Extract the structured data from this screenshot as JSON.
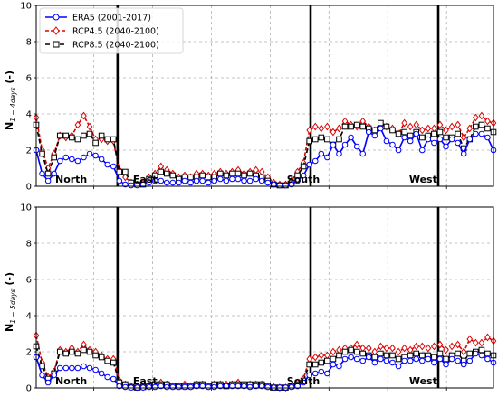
{
  "chart_data": [
    {
      "type": "line",
      "ylabel": "N",
      "ylabel_sub": "1 − 4days",
      "ylabel_unit": "(-)",
      "ylim": [
        0,
        10
      ],
      "yticks": [
        "0",
        "2",
        "4",
        "6",
        "8",
        "10"
      ],
      "grid": true,
      "legend_position": "top-left",
      "region_labels": [
        "North",
        "East",
        "South",
        "West"
      ],
      "series": [
        {
          "name": "ERA5 (2001-2017)",
          "color": "#0000ff",
          "marker": "circle",
          "values": [
            2.0,
            0.7,
            0.3,
            0.7,
            1.4,
            1.6,
            1.5,
            1.4,
            1.6,
            1.8,
            1.7,
            1.5,
            1.2,
            1.1,
            0.3,
            0.1,
            0.05,
            0.05,
            0.1,
            0.2,
            0.3,
            0.3,
            0.2,
            0.2,
            0.2,
            0.3,
            0.2,
            0.3,
            0.3,
            0.2,
            0.3,
            0.4,
            0.3,
            0.4,
            0.4,
            0.3,
            0.3,
            0.4,
            0.3,
            0.2,
            0.1,
            0.05,
            0.05,
            0.1,
            0.3,
            0.6,
            1.2,
            1.4,
            1.8,
            1.6,
            2.3,
            1.8,
            2.3,
            2.7,
            2.2,
            1.8,
            3.0,
            2.8,
            3.2,
            2.5,
            2.3,
            2.0,
            2.7,
            2.5,
            2.9,
            2.0,
            2.6,
            2.4,
            2.6,
            2.2,
            2.6,
            2.4,
            1.8,
            2.6,
            2.9,
            2.9,
            2.7,
            2.0
          ]
        },
        {
          "name": "RCP4.5 (2040-2100)",
          "color": "#dd0000",
          "marker": "diamond",
          "values": [
            3.8,
            2.0,
            1.0,
            1.8,
            2.8,
            2.7,
            2.8,
            3.4,
            3.9,
            3.3,
            2.6,
            2.6,
            2.5,
            2.5,
            0.9,
            0.5,
            0.2,
            0.1,
            0.2,
            0.5,
            0.7,
            1.1,
            0.9,
            0.7,
            0.5,
            0.6,
            0.5,
            0.7,
            0.7,
            0.6,
            0.7,
            0.8,
            0.7,
            0.8,
            0.9,
            0.7,
            0.8,
            0.9,
            0.8,
            0.5,
            0.2,
            0.1,
            0.1,
            0.3,
            0.8,
            1.3,
            3.1,
            3.3,
            3.2,
            3.3,
            3.0,
            3.2,
            3.6,
            3.4,
            3.3,
            3.6,
            3.3,
            3.1,
            3.4,
            3.3,
            3.2,
            2.9,
            3.5,
            3.3,
            3.4,
            3.1,
            3.2,
            3.2,
            3.4,
            3.1,
            3.3,
            3.4,
            2.7,
            3.2,
            3.8,
            3.9,
            3.6,
            3.5
          ]
        },
        {
          "name": "RCP8.5 (2040-2100)",
          "color": "#000000",
          "marker": "square",
          "values": [
            3.4,
            1.8,
            0.7,
            1.6,
            2.8,
            2.8,
            2.7,
            2.6,
            2.8,
            2.9,
            2.4,
            2.8,
            2.6,
            2.6,
            0.8,
            0.8,
            0.2,
            0.1,
            0.1,
            0.4,
            0.6,
            0.8,
            0.7,
            0.6,
            0.4,
            0.5,
            0.5,
            0.5,
            0.6,
            0.5,
            0.5,
            0.7,
            0.6,
            0.7,
            0.7,
            0.6,
            0.7,
            0.6,
            0.5,
            0.3,
            0.1,
            0.05,
            0.05,
            0.2,
            0.6,
            1.1,
            2.5,
            2.6,
            2.7,
            2.6,
            2.3,
            2.6,
            3.3,
            3.3,
            3.4,
            3.3,
            3.2,
            3.1,
            3.5,
            3.3,
            3.1,
            2.9,
            3.0,
            2.8,
            3.0,
            2.7,
            2.8,
            2.9,
            3.0,
            2.7,
            2.7,
            2.9,
            2.1,
            2.6,
            3.3,
            3.4,
            3.2,
            3.0
          ]
        }
      ]
    },
    {
      "type": "line",
      "ylabel": "N",
      "ylabel_sub": "1 − 5days",
      "ylabel_unit": "(-)",
      "ylim": [
        0,
        10
      ],
      "yticks": [
        "0",
        "2",
        "4",
        "6",
        "8",
        "10"
      ],
      "grid": true,
      "region_labels": [
        "North",
        "East",
        "South",
        "West"
      ],
      "series": [
        {
          "name": "ERA5 (2001-2017)",
          "color": "#0000ff",
          "marker": "circle",
          "values": [
            1.7,
            0.7,
            0.3,
            0.7,
            1.1,
            1.1,
            1.1,
            1.1,
            1.2,
            1.1,
            1.0,
            0.8,
            0.6,
            0.5,
            0.1,
            0.05,
            0.02,
            0.02,
            0.02,
            0.05,
            0.05,
            0.1,
            0.05,
            0.05,
            0.05,
            0.05,
            0.05,
            0.1,
            0.1,
            0.05,
            0.05,
            0.1,
            0.1,
            0.1,
            0.1,
            0.1,
            0.05,
            0.1,
            0.1,
            0.05,
            0.02,
            0.02,
            0.02,
            0.05,
            0.1,
            0.3,
            0.7,
            0.8,
            0.9,
            0.8,
            1.3,
            1.2,
            1.6,
            1.7,
            1.6,
            1.5,
            1.7,
            1.4,
            1.6,
            1.5,
            1.4,
            1.2,
            1.5,
            1.5,
            1.6,
            1.5,
            1.6,
            1.4,
            1.6,
            1.3,
            1.6,
            1.5,
            1.3,
            1.5,
            1.9,
            1.8,
            1.6,
            1.4
          ]
        },
        {
          "name": "RCP4.5 (2040-2100)",
          "color": "#dd0000",
          "marker": "diamond",
          "values": [
            2.9,
            1.4,
            0.6,
            0.9,
            2.1,
            2.0,
            2.2,
            2.0,
            2.4,
            2.1,
            2.0,
            1.8,
            1.6,
            1.6,
            0.4,
            0.2,
            0.1,
            0.05,
            0.05,
            0.1,
            0.2,
            0.3,
            0.2,
            0.1,
            0.1,
            0.2,
            0.1,
            0.2,
            0.2,
            0.1,
            0.2,
            0.2,
            0.2,
            0.2,
            0.3,
            0.2,
            0.2,
            0.2,
            0.2,
            0.1,
            0.05,
            0.02,
            0.02,
            0.1,
            0.3,
            0.5,
            1.6,
            1.7,
            1.8,
            1.8,
            2.0,
            2.1,
            2.2,
            2.2,
            2.4,
            2.2,
            2.2,
            2.0,
            2.3,
            2.2,
            2.2,
            2.0,
            2.2,
            2.1,
            2.3,
            2.3,
            2.2,
            2.3,
            2.4,
            2.1,
            2.3,
            2.4,
            2.0,
            2.7,
            2.5,
            2.5,
            2.8,
            2.6
          ]
        },
        {
          "name": "RCP8.5 (2040-2100)",
          "color": "#000000",
          "marker": "square",
          "values": [
            2.3,
            1.2,
            0.5,
            0.8,
            2.0,
            1.9,
            2.0,
            1.9,
            2.1,
            2.0,
            1.8,
            1.7,
            1.5,
            1.4,
            0.3,
            0.2,
            0.05,
            0.02,
            0.05,
            0.1,
            0.2,
            0.2,
            0.2,
            0.1,
            0.1,
            0.1,
            0.1,
            0.2,
            0.2,
            0.1,
            0.2,
            0.2,
            0.1,
            0.2,
            0.2,
            0.2,
            0.2,
            0.2,
            0.2,
            0.1,
            0.02,
            0.02,
            0.02,
            0.1,
            0.2,
            0.4,
            1.3,
            1.3,
            1.4,
            1.5,
            1.6,
            1.8,
            2.0,
            2.1,
            2.0,
            1.9,
            1.8,
            1.7,
            1.9,
            1.8,
            1.8,
            1.6,
            1.7,
            1.8,
            1.9,
            1.8,
            1.8,
            1.7,
            1.9,
            1.6,
            1.8,
            1.9,
            1.5,
            1.9,
            2.0,
            2.1,
            1.9,
            1.8
          ]
        }
      ]
    }
  ]
}
